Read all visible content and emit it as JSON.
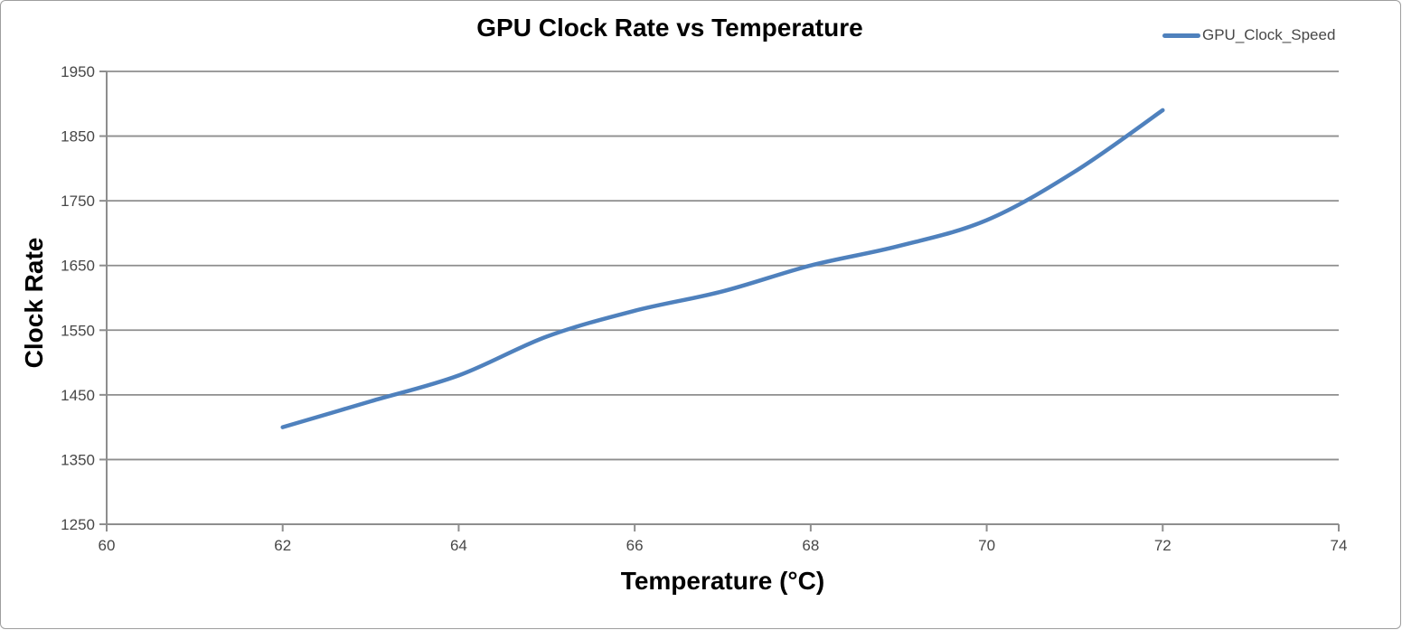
{
  "frame": {
    "background": "#ffffff",
    "border_color": "#9e9e9e"
  },
  "chart_data": {
    "type": "line",
    "title": "GPU Clock Rate vs Temperature",
    "xlabel": "Temperature (°C)",
    "ylabel": "Clock Rate",
    "xlim": [
      60,
      74
    ],
    "ylim": [
      1250,
      1950
    ],
    "x_ticks": [
      60,
      62,
      64,
      66,
      68,
      70,
      72,
      74
    ],
    "y_ticks": [
      1250,
      1350,
      1450,
      1550,
      1650,
      1750,
      1850,
      1950
    ],
    "grid": "horizontal",
    "gridline_color": "#8e8e8e",
    "axis_color": "#8e8e8e",
    "legend_position": "top-right",
    "series": [
      {
        "name": "GPU_Clock_Speed",
        "color": "#4F81BD",
        "smooth": true,
        "x": [
          62,
          63,
          64,
          65,
          66,
          67,
          68,
          69,
          70,
          71,
          72
        ],
        "y": [
          1400,
          1440,
          1480,
          1540,
          1580,
          1610,
          1650,
          1680,
          1720,
          1795,
          1890
        ]
      }
    ]
  }
}
